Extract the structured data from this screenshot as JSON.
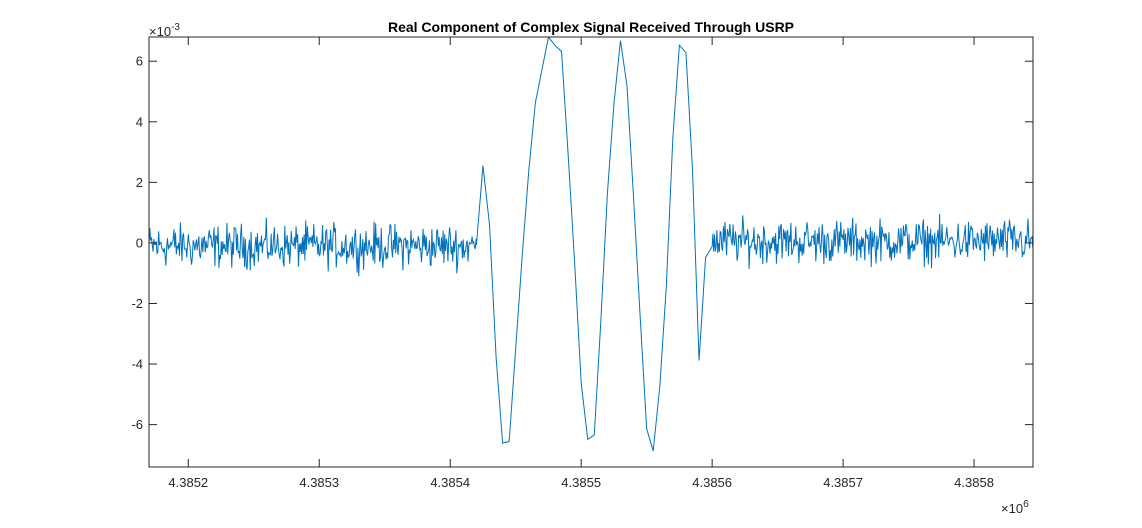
{
  "chart_data": {
    "type": "line",
    "title": "Real Component of Complex Signal Received Through USRP",
    "xlabel": "",
    "ylabel": "",
    "x_unit_multiplier_base": "×10",
    "x_unit_multiplier_exp": "6",
    "y_unit_multiplier_base": "×10",
    "y_unit_multiplier_exp": "-3",
    "xlim": [
      4.38517,
      4.385845
    ],
    "ylim": [
      -7.4,
      6.8
    ],
    "xticks": [
      4.3852,
      4.3853,
      4.3854,
      4.3855,
      4.3856,
      4.3857,
      4.3858
    ],
    "xtick_labels": [
      "4.3852",
      "4.3853",
      "4.3854",
      "4.3855",
      "4.3856",
      "4.3857",
      "4.3858"
    ],
    "yticks": [
      -6,
      -4,
      -2,
      0,
      2,
      4,
      6
    ],
    "ytick_labels": [
      "-6",
      "-4",
      "-2",
      "0",
      "2",
      "4",
      "6"
    ],
    "grid": false,
    "line_color": "#0072BD",
    "burst": {
      "points": [
        [
          4.38542,
          0
        ],
        [
          4.385425,
          2.4
        ],
        [
          4.38543,
          0.5
        ],
        [
          4.385435,
          -3.5
        ],
        [
          4.38544,
          -6.5
        ],
        [
          4.385445,
          -6.4
        ],
        [
          4.38545,
          -3.5
        ],
        [
          4.385455,
          -0.5
        ],
        [
          4.38546,
          2.5
        ],
        [
          4.385465,
          4.8
        ],
        [
          4.38547,
          5.8
        ],
        [
          4.385475,
          6.8
        ],
        [
          4.38548,
          6.6
        ],
        [
          4.385485,
          6.2
        ],
        [
          4.38549,
          3.0
        ],
        [
          4.385495,
          -0.5
        ],
        [
          4.3855,
          -4.5
        ],
        [
          4.385505,
          -6.4
        ],
        [
          4.38551,
          -6.3
        ],
        [
          4.385515,
          -2.5
        ],
        [
          4.38552,
          1.5
        ],
        [
          4.385525,
          4.5
        ],
        [
          4.38553,
          6.8
        ],
        [
          4.385535,
          5.0
        ],
        [
          4.38554,
          1.5
        ],
        [
          4.385545,
          -2.5
        ],
        [
          4.38555,
          -6.2
        ],
        [
          4.385555,
          -6.9
        ],
        [
          4.38556,
          -5.0
        ],
        [
          4.385565,
          -1.5
        ],
        [
          4.38557,
          3.5
        ],
        [
          4.385575,
          6.6
        ],
        [
          4.38558,
          6.3
        ],
        [
          4.385585,
          2.5
        ],
        [
          4.38559,
          -3.8
        ],
        [
          4.385595,
          -0.5
        ],
        [
          4.3856,
          0
        ]
      ]
    },
    "noise_amplitude": 0.35,
    "noise_samples": 1100
  }
}
